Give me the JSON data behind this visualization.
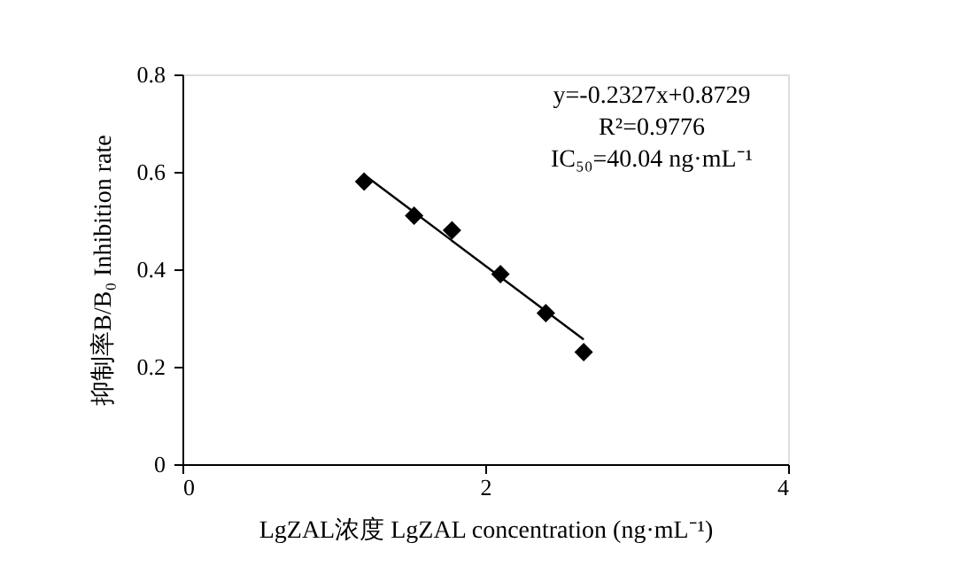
{
  "chart_data": {
    "type": "scatter",
    "xlabel": "LgZAL浓度 LgZAL concentration (ng·mL⁻¹)",
    "ylabel": "抑制率B/B₀ Inhibition rate",
    "annotations": [
      "y=-0.2327x+0.8729",
      "R²=0.9776",
      "IC₅₀=40.04 ng·mL⁻¹"
    ],
    "series": [
      {
        "type": "line",
        "color": "#000000",
        "marker": "none",
        "line_style": "solid",
        "x": [
          1.2,
          2.65
        ],
        "values": [
          0.594,
          0.256
        ]
      },
      {
        "color": "#000000",
        "marker": "diamond",
        "x": [
          1.2,
          1.53,
          1.78,
          2.1,
          2.4,
          2.65
        ],
        "values": [
          0.58,
          0.51,
          0.48,
          0.39,
          0.31,
          0.23
        ]
      }
    ],
    "xlim": [
      0,
      4
    ],
    "xticks": [
      0,
      2,
      4
    ],
    "ylim": [
      0,
      0.8
    ],
    "yticks": [
      0,
      0.2,
      0.4,
      0.6,
      0.8
    ],
    "grid": false
  }
}
